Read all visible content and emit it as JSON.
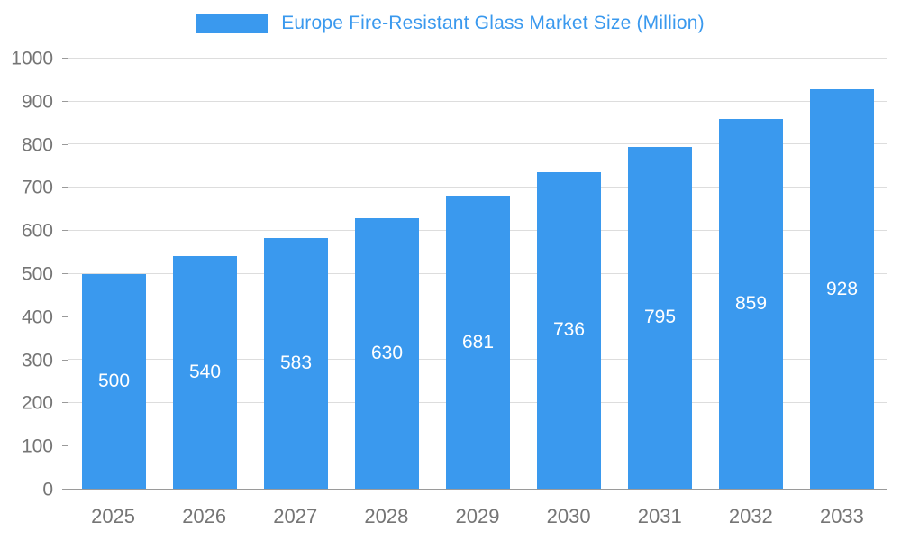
{
  "chart_data": {
    "type": "bar",
    "title": "Europe Fire-Resistant Glass Market Size (Million)",
    "categories": [
      "2025",
      "2026",
      "2027",
      "2028",
      "2029",
      "2030",
      "2031",
      "2032",
      "2033"
    ],
    "values": [
      500,
      540,
      583,
      630,
      681,
      736,
      795,
      859,
      928
    ],
    "xlabel": "",
    "ylabel": "",
    "ylim": [
      0,
      1000
    ],
    "ytick_step": 100,
    "grid": true,
    "legend_position": "top",
    "bar_color": "#3A99EE",
    "title_color": "#3A99EE",
    "value_label_color": "#ffffff",
    "axis_text_color": "#757575",
    "grid_color": "#dddddd",
    "axis_line_color": "#9a9a9a"
  }
}
